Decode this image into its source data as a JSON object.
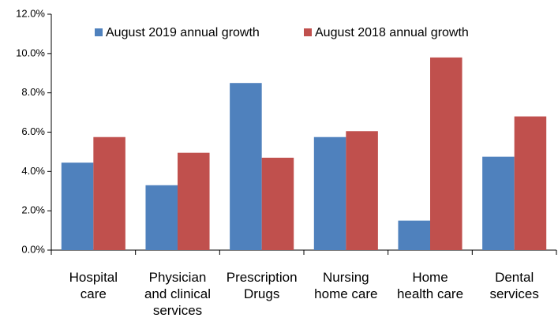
{
  "chart_data": {
    "type": "bar",
    "categories": [
      "Hospital care",
      "Physician and clinical services",
      "Prescription Drugs",
      "Nursing home care",
      "Home health care",
      "Dental services"
    ],
    "series": [
      {
        "name": "August 2019 annual growth",
        "color": "#4f81bd",
        "values": [
          4.45,
          3.3,
          8.5,
          5.75,
          1.5,
          4.75
        ]
      },
      {
        "name": "August 2018 annual growth",
        "color": "#c0504d",
        "values": [
          5.75,
          4.95,
          4.7,
          6.05,
          9.8,
          6.8
        ]
      }
    ],
    "ylim": [
      0,
      12
    ],
    "yticks": [
      {
        "value": 0,
        "label": "0.0%"
      },
      {
        "value": 2,
        "label": "2.0%"
      },
      {
        "value": 4,
        "label": "4.0%"
      },
      {
        "value": 6,
        "label": "6.0%"
      },
      {
        "value": 8,
        "label": "8.0%"
      },
      {
        "value": 10,
        "label": "10.0%"
      },
      {
        "value": 12,
        "label": "12.0%"
      }
    ],
    "grid": false,
    "legend": "top"
  }
}
